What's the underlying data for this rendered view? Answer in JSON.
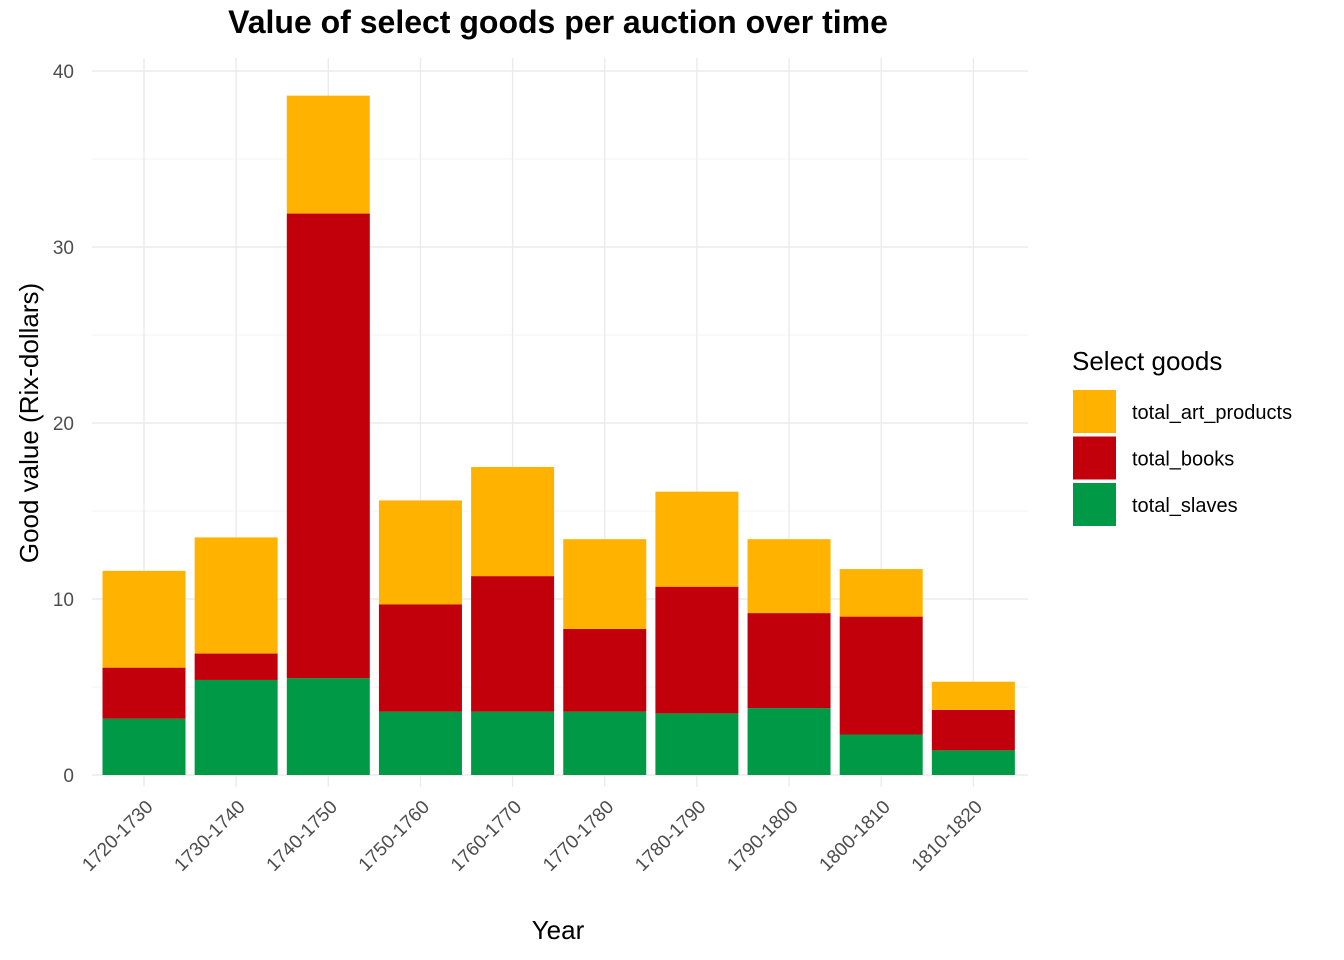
{
  "chart_data": {
    "type": "bar",
    "stacked": true,
    "title": "Value of select goods per auction over time",
    "xlabel": "Year",
    "ylabel": "Good value (Rix-dollars)",
    "ylim": [
      0,
      40
    ],
    "yticks": [
      0,
      10,
      20,
      30,
      40
    ],
    "grid": true,
    "legend": {
      "title": "Select goods",
      "position": "right"
    },
    "categories": [
      "1720-1730",
      "1730-1740",
      "1740-1750",
      "1750-1760",
      "1760-1770",
      "1770-1780",
      "1780-1790",
      "1790-1800",
      "1800-1810",
      "1810-1820"
    ],
    "series": [
      {
        "name": "total_slaves",
        "color": "#009945",
        "values": [
          3.2,
          5.4,
          5.5,
          3.6,
          3.6,
          3.6,
          3.5,
          3.8,
          2.3,
          1.4
        ]
      },
      {
        "name": "total_books",
        "color": "#c2000b",
        "values": [
          2.9,
          1.5,
          26.4,
          6.1,
          7.7,
          4.7,
          7.2,
          5.4,
          6.7,
          2.3
        ]
      },
      {
        "name": "total_art_products",
        "color": "#ffb300",
        "values": [
          5.5,
          6.6,
          6.7,
          5.9,
          6.2,
          5.1,
          5.4,
          4.2,
          2.7,
          1.6
        ]
      }
    ],
    "legend_order": [
      "total_art_products",
      "total_books",
      "total_slaves"
    ]
  }
}
